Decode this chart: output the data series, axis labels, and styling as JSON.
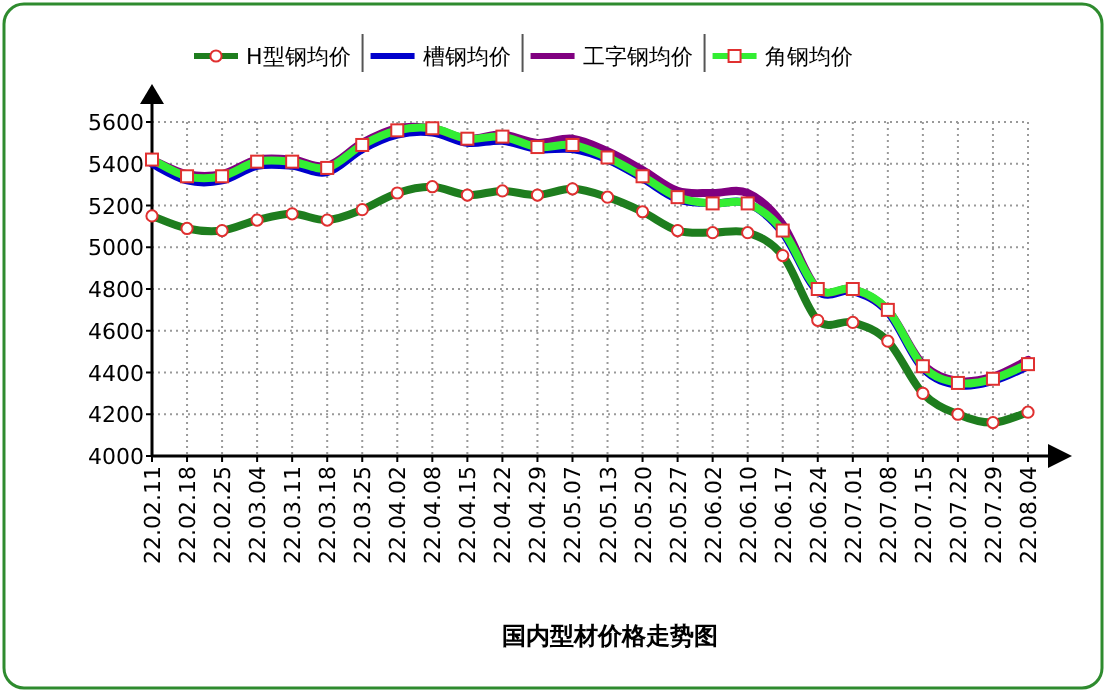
{
  "chart_data": {
    "type": "line",
    "title": "国内型材价格走势图",
    "categories": [
      "22.02.11",
      "22.02.18",
      "22.02.25",
      "22.03.04",
      "22.03.11",
      "22.03.18",
      "22.03.25",
      "22.04.02",
      "22.04.08",
      "22.04.15",
      "22.04.22",
      "22.04.29",
      "22.05.07",
      "22.05.13",
      "22.05.20",
      "22.05.27",
      "22.06.02",
      "22.06.10",
      "22.06.17",
      "22.06.24",
      "22.07.01",
      "22.07.08",
      "22.07.15",
      "22.07.22",
      "22.07.29",
      "22.08.04"
    ],
    "series": [
      {
        "name": "H型钢均价",
        "color": "#1e7d1e",
        "marker": "circle",
        "values": [
          5150,
          5090,
          5080,
          5130,
          5160,
          5130,
          5180,
          5260,
          5290,
          5250,
          5270,
          5250,
          5280,
          5240,
          5170,
          5080,
          5070,
          5070,
          4960,
          4650,
          4640,
          4550,
          4300,
          4200,
          4160,
          4210
        ]
      },
      {
        "name": "槽钢均价",
        "color": "#0000cc",
        "marker": "none",
        "values": [
          5400,
          5320,
          5320,
          5390,
          5390,
          5360,
          5470,
          5540,
          5550,
          5500,
          5510,
          5470,
          5470,
          5420,
          5330,
          5230,
          5210,
          5210,
          5070,
          4790,
          4790,
          4690,
          4420,
          4340,
          4360,
          4430
        ]
      },
      {
        "name": "工字钢均价",
        "color": "#800080",
        "marker": "none",
        "values": [
          5420,
          5350,
          5350,
          5420,
          5420,
          5390,
          5500,
          5570,
          5570,
          5520,
          5540,
          5500,
          5520,
          5460,
          5370,
          5270,
          5260,
          5260,
          5110,
          4800,
          4800,
          4700,
          4440,
          4360,
          4380,
          4460
        ]
      },
      {
        "name": "角钢均价",
        "color": "#33ee33",
        "marker": "square",
        "values": [
          5420,
          5340,
          5340,
          5410,
          5410,
          5380,
          5490,
          5560,
          5570,
          5520,
          5530,
          5480,
          5490,
          5430,
          5340,
          5240,
          5210,
          5210,
          5080,
          4800,
          4800,
          4700,
          4430,
          4350,
          4370,
          4440
        ]
      }
    ],
    "ylim": [
      4000,
      5600
    ],
    "yticks": [
      4000,
      4200,
      4400,
      4600,
      4800,
      5000,
      5200,
      5400,
      5600
    ],
    "grid": true,
    "legend": "top"
  }
}
